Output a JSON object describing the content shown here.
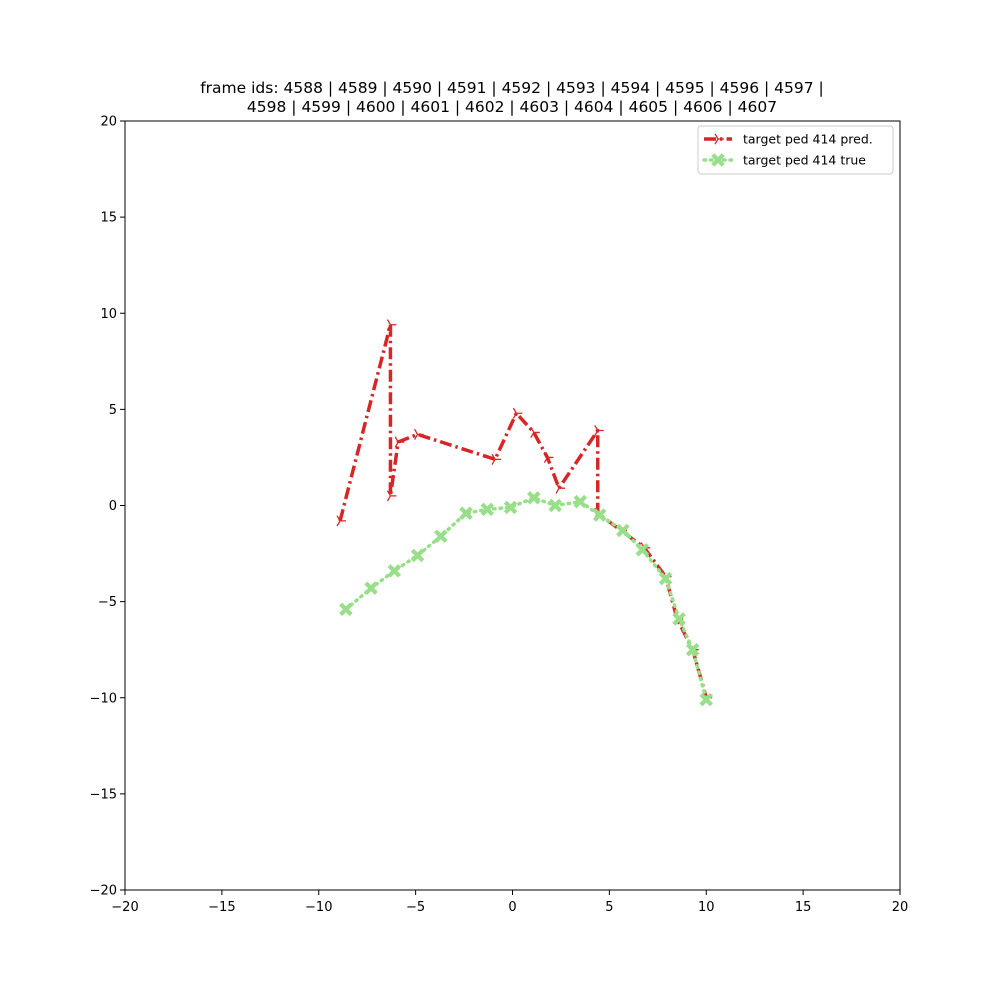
{
  "chart_data": {
    "type": "line",
    "title_lines": [
      "frame ids: 4588 | 4589 | 4590 | 4591 | 4592 | 4593 | 4594 | 4595 | 4596 | 4597 |",
      "4598 | 4599 | 4600 | 4601 | 4602 | 4603 | 4604 | 4605 | 4606 | 4607"
    ],
    "xlabel": "",
    "ylabel": "",
    "xlim": [
      -20,
      20
    ],
    "ylim": [
      -20,
      20
    ],
    "x_ticks": [
      -20,
      -15,
      -10,
      -5,
      0,
      5,
      10,
      15,
      20
    ],
    "y_ticks": [
      -20,
      -15,
      -10,
      -5,
      0,
      5,
      10,
      15,
      20
    ],
    "x_tick_labels": [
      "−20",
      "−15",
      "−10",
      "−5",
      "0",
      "5",
      "10",
      "15",
      "20"
    ],
    "y_tick_labels": [
      "−20",
      "−15",
      "−10",
      "−5",
      "0",
      "5",
      "10",
      "15",
      "20"
    ],
    "grid": false,
    "legend_position": "top-right",
    "series": [
      {
        "name": "target ped 414 pred.",
        "color": "#d62728",
        "line_style": "dash-dot",
        "marker": "tri-right",
        "points": [
          [
            -8.9,
            -0.8
          ],
          [
            -6.3,
            9.4
          ],
          [
            -6.3,
            0.5
          ],
          [
            -5.9,
            3.3
          ],
          [
            -4.9,
            3.7
          ],
          [
            -0.9,
            2.4
          ],
          [
            0.2,
            4.8
          ],
          [
            1.1,
            3.8
          ],
          [
            1.8,
            2.5
          ],
          [
            2.4,
            0.9
          ],
          [
            4.4,
            3.9
          ],
          [
            4.4,
            -0.4
          ],
          [
            5.6,
            -1.3
          ],
          [
            6.8,
            -2.2
          ],
          [
            7.9,
            -3.7
          ],
          [
            8.5,
            -5.9
          ],
          [
            9.3,
            -7.5
          ],
          [
            10.0,
            -10.0
          ]
        ]
      },
      {
        "name": "target ped 414 true",
        "color": "#98df8a",
        "line_style": "dotted",
        "marker": "x-filled",
        "points": [
          [
            -8.6,
            -5.4
          ],
          [
            -7.3,
            -4.3
          ],
          [
            -6.1,
            -3.4
          ],
          [
            -4.9,
            -2.6
          ],
          [
            -3.7,
            -1.6
          ],
          [
            -2.4,
            -0.4
          ],
          [
            -1.3,
            -0.2
          ],
          [
            -0.1,
            -0.1
          ],
          [
            1.1,
            0.4
          ],
          [
            2.2,
            0.0
          ],
          [
            3.5,
            0.2
          ],
          [
            4.5,
            -0.5
          ],
          [
            5.7,
            -1.3
          ],
          [
            6.7,
            -2.3
          ],
          [
            7.9,
            -3.8
          ],
          [
            8.6,
            -5.9
          ],
          [
            9.3,
            -7.5
          ],
          [
            10.0,
            -10.1
          ]
        ]
      }
    ]
  }
}
